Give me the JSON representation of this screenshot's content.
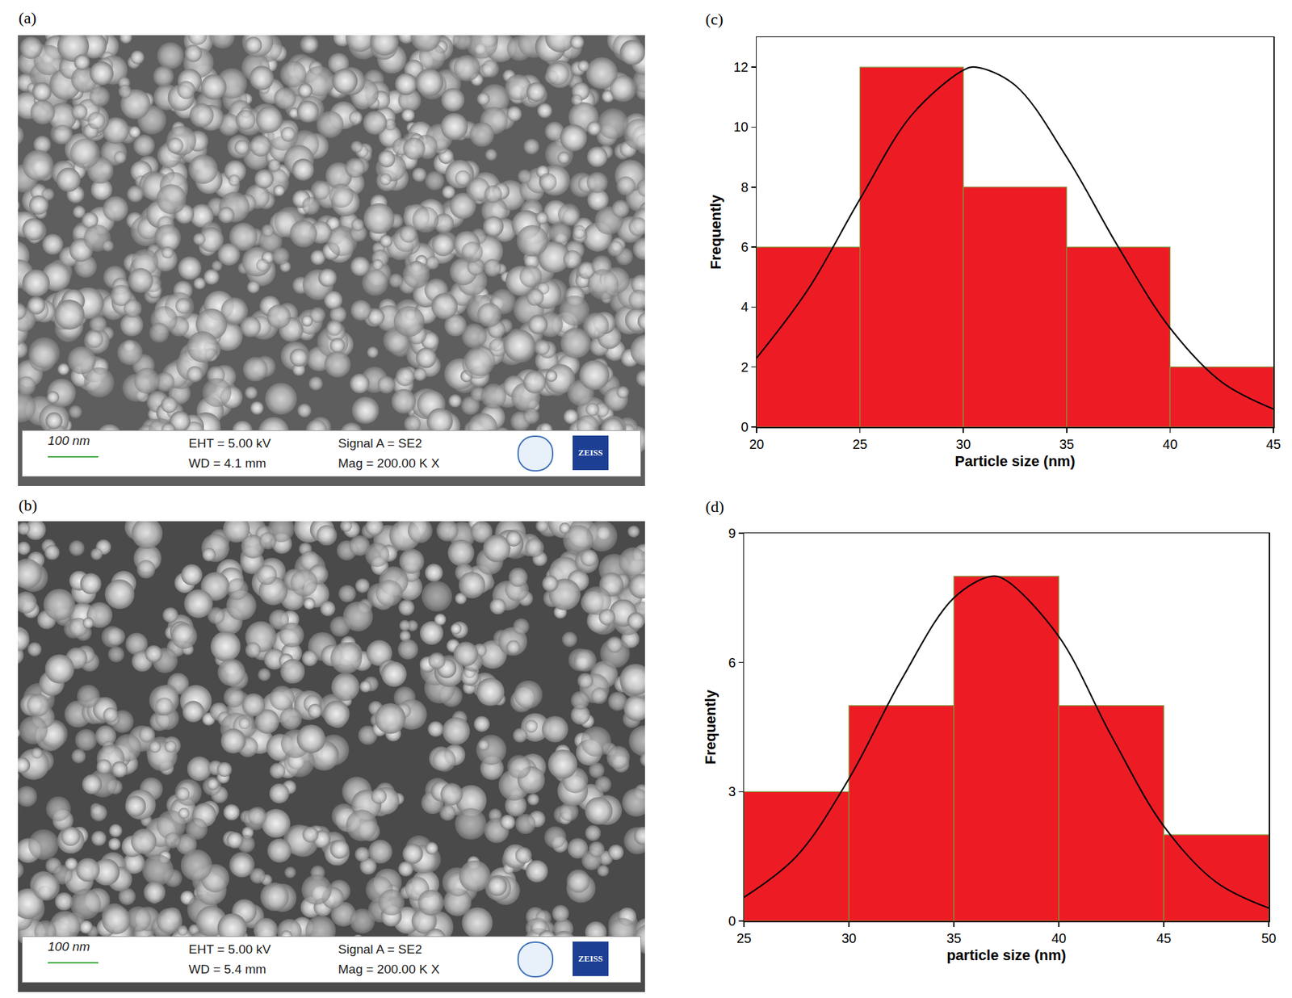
{
  "chart_data": [
    {
      "type": "histogram",
      "annotations": [
        "(c)"
      ],
      "x_label": "Particle size (nm)",
      "y_label": "Frequently",
      "bins": [
        20,
        25,
        30,
        35,
        40,
        45
      ],
      "values": [
        6,
        12,
        8,
        6,
        2
      ],
      "color": "#ed1c24",
      "curve": {
        "type": "line",
        "color": "#000000",
        "x": [
          20,
          22.5,
          25,
          27.5,
          30,
          30.6,
          32.5,
          35,
          37.5,
          40,
          42.5,
          45
        ],
        "values": [
          2.3,
          4.6,
          7.6,
          10.4,
          11.9,
          12,
          11.4,
          9.0,
          6.0,
          3.3,
          1.5,
          0.6
        ]
      },
      "xlim": [
        20,
        45
      ],
      "xticks": [
        20,
        25,
        30,
        35,
        40,
        45
      ],
      "ylim": [
        0,
        13
      ],
      "yticks": [
        0,
        2,
        4,
        6,
        8,
        10,
        12
      ],
      "grid": false
    },
    {
      "type": "histogram",
      "annotations": [
        "(d)"
      ],
      "x_label": "particle size (nm)",
      "y_label": "Frequently",
      "bins": [
        25,
        30,
        35,
        40,
        45,
        50
      ],
      "values": [
        3,
        5,
        8,
        5,
        2
      ],
      "color": "#ed1c24",
      "curve": {
        "type": "line",
        "color": "#000000",
        "x": [
          25,
          27.5,
          30,
          32.5,
          35,
          36.8,
          37.5,
          40,
          42.5,
          45,
          47.5,
          50
        ],
        "values": [
          0.55,
          1.5,
          3.3,
          5.6,
          7.5,
          8,
          7.9,
          6.6,
          4.3,
          2.2,
          0.9,
          0.3
        ]
      },
      "xlim": [
        25,
        50
      ],
      "xticks": [
        25,
        30,
        35,
        40,
        45,
        50
      ],
      "ylim": [
        0,
        9
      ],
      "yticks": [
        0,
        3,
        6,
        9
      ],
      "grid": false
    }
  ],
  "micrographs": [
    {
      "label": "(a)",
      "scale_bar": "100 nm",
      "info": [
        "EHT = 5.00 kV",
        "WD = 4.1 mm",
        "Signal A = SE2",
        "Mag = 200.00 K X"
      ],
      "logo": "ZEISS"
    },
    {
      "label": "(b)",
      "scale_bar": "100 nm",
      "info": [
        "EHT = 5.00 kV",
        "WD = 5.4 mm",
        "Signal A = SE2",
        "Mag = 200.00 K X"
      ],
      "logo": "ZEISS"
    }
  ]
}
